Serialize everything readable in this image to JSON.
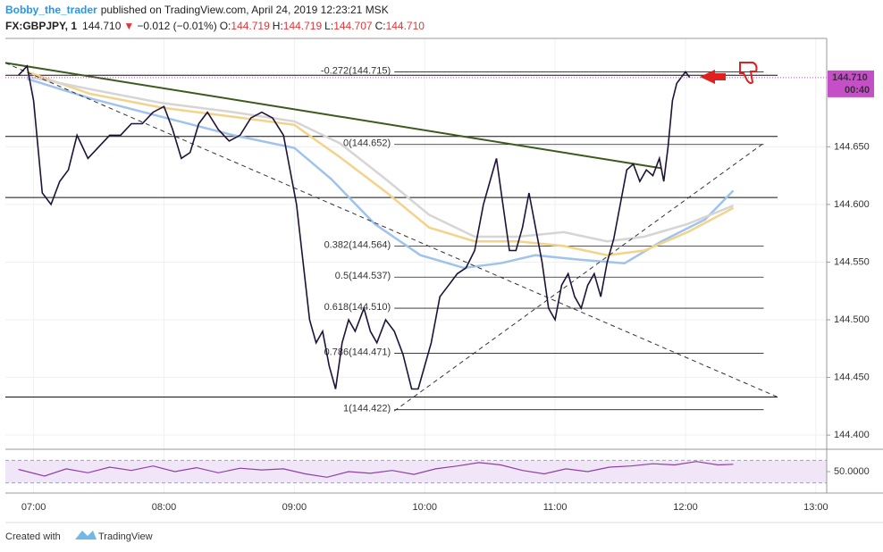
{
  "header": {
    "author": "Bobby_the_trader",
    "published": "published on TradingView.com, April 24, 2019 12:23:21 MSK"
  },
  "quote": {
    "symbol": "FX:GBPJPY, 1",
    "last": "144.710",
    "direction": "▼",
    "change": "−0.012 (−0.01%)",
    "open_label": "O:",
    "open": "144.719",
    "high_label": "H:",
    "high": "144.719",
    "low_label": "L:",
    "low": "144.707",
    "close_label": "C:",
    "close": "144.710"
  },
  "footer": {
    "created": "Created with",
    "brand": "TradingView"
  },
  "chart_data": {
    "type": "line",
    "xlim": [
      407,
      785
    ],
    "ylim": [
      144.39,
      144.744
    ],
    "xticks": [
      {
        "value": 420,
        "label": "07:00"
      },
      {
        "value": 480,
        "label": "08:00"
      },
      {
        "value": 540,
        "label": "09:00"
      },
      {
        "value": 600,
        "label": "10:00"
      },
      {
        "value": 660,
        "label": "11:00"
      },
      {
        "value": 720,
        "label": "12:00"
      },
      {
        "value": 780,
        "label": "13:00"
      }
    ],
    "yticks": [
      {
        "value": 144.4,
        "label": "144.400"
      },
      {
        "value": 144.45,
        "label": "144.450"
      },
      {
        "value": 144.5,
        "label": "144.500"
      },
      {
        "value": 144.55,
        "label": "144.550"
      },
      {
        "value": 144.6,
        "label": "144.600"
      },
      {
        "value": 144.65,
        "label": "144.650"
      }
    ],
    "grid": true,
    "x": [
      413,
      417,
      420,
      424,
      428,
      432,
      436,
      440,
      445,
      450,
      455,
      460,
      465,
      470,
      475,
      480,
      484,
      488,
      492,
      496,
      500,
      505,
      510,
      515,
      520,
      525,
      530,
      535,
      538,
      541,
      544,
      547,
      550,
      553,
      556,
      559,
      562,
      565,
      568,
      572,
      575,
      578,
      582,
      586,
      590,
      594,
      597,
      600,
      603,
      607,
      611,
      615,
      619,
      623,
      627,
      630,
      633,
      636,
      639,
      642,
      645,
      648,
      651,
      654,
      657,
      660,
      663,
      666,
      669,
      672,
      675,
      678,
      681,
      684,
      687,
      690,
      693,
      696,
      699,
      702,
      705,
      708,
      710,
      712,
      714,
      716,
      718,
      720,
      722
    ],
    "series": [
      {
        "color": "#1f1236",
        "values": [
          144.712,
          144.72,
          144.69,
          144.61,
          144.6,
          144.62,
          144.63,
          144.66,
          144.64,
          144.65,
          144.66,
          144.66,
          144.67,
          144.67,
          144.68,
          144.685,
          144.665,
          144.64,
          144.645,
          144.67,
          144.68,
          144.665,
          144.655,
          144.66,
          144.675,
          144.68,
          144.675,
          144.66,
          144.63,
          144.6,
          144.55,
          144.5,
          144.48,
          144.49,
          144.46,
          144.44,
          144.48,
          144.5,
          144.49,
          144.51,
          144.49,
          144.48,
          144.5,
          144.49,
          144.47,
          144.44,
          144.44,
          144.46,
          144.48,
          144.52,
          144.53,
          144.54,
          144.545,
          144.56,
          144.6,
          144.62,
          144.64,
          144.6,
          144.56,
          144.56,
          144.58,
          144.61,
          144.58,
          144.55,
          144.51,
          144.5,
          144.53,
          144.54,
          144.52,
          144.51,
          144.53,
          144.54,
          144.52,
          144.55,
          144.57,
          144.6,
          144.63,
          144.635,
          144.62,
          144.63,
          144.625,
          144.64,
          144.62,
          144.65,
          144.69,
          144.705,
          144.71,
          144.715,
          144.71
        ]
      }
    ],
    "moving_averages": [
      {
        "color": "#9fc3ec",
        "x": [
          417,
          446,
          479,
          512,
          540,
          557,
          577,
          598,
          618,
          635,
          651,
          672,
          692,
          709,
          729,
          742
        ],
        "values": [
          144.709,
          144.692,
          144.676,
          144.66,
          144.649,
          144.622,
          144.583,
          144.556,
          144.545,
          144.549,
          144.556,
          144.552,
          144.549,
          144.568,
          144.587,
          144.612
        ]
      },
      {
        "color": "#f3d38a",
        "x": [
          417,
          446,
          479,
          512,
          540,
          561,
          582,
          602,
          623,
          643,
          664,
          684,
          701,
          721,
          742
        ],
        "values": [
          144.715,
          144.696,
          144.684,
          144.676,
          144.669,
          144.641,
          144.611,
          144.58,
          144.568,
          144.568,
          144.564,
          144.556,
          144.56,
          144.576,
          144.597
        ]
      },
      {
        "color": "#d6d4d4",
        "x": [
          417,
          446,
          479,
          512,
          540,
          561,
          582,
          602,
          623,
          643,
          664,
          684,
          701,
          721,
          742
        ],
        "values": [
          144.711,
          144.7,
          144.688,
          144.68,
          144.672,
          144.653,
          144.622,
          144.591,
          144.572,
          144.572,
          144.576,
          144.568,
          144.572,
          144.583,
          144.599
        ]
      }
    ],
    "horizontal_lines": [
      144.712,
      144.659,
      144.606,
      144.433
    ],
    "trendlines": [
      {
        "color": "#3c5a1e",
        "dashed": false,
        "x": [
          407,
          709
        ],
        "y": [
          144.7228,
          144.6314
        ]
      },
      {
        "color": "#333333",
        "dashed": true,
        "x": [
          407,
          762
        ],
        "y": [
          144.7228,
          144.4333
        ]
      },
      {
        "color": "#333333",
        "dashed": true,
        "x": [
          586,
          756
        ],
        "y": [
          144.4209,
          144.6531
        ]
      }
    ],
    "fib_x": [
      586,
      756
    ],
    "fib_levels": [
      {
        "label": "-0.272(144.715)",
        "value": 144.715
      },
      {
        "label": "0(144.652)",
        "value": 144.652
      },
      {
        "label": "0.382(144.564)",
        "value": 144.564
      },
      {
        "label": "0.5(144.537)",
        "value": 144.537
      },
      {
        "label": "0.618(144.510)",
        "value": 144.51
      },
      {
        "label": "0.786(144.471)",
        "value": 144.471
      },
      {
        "label": "1(144.422)",
        "value": 144.422
      }
    ],
    "price_tag": {
      "value": 144.71,
      "label": "144.710",
      "countdown": "00:40",
      "color": "#c44fc6"
    },
    "rsi": {
      "color": "#8e3fa8",
      "ylim": [
        15,
        85
      ],
      "bands": [
        30,
        70
      ],
      "yticks": [
        {
          "value": 50,
          "label": "50.0000"
        }
      ],
      "x": [
        413,
        425,
        435,
        445,
        455,
        465,
        475,
        485,
        495,
        505,
        515,
        525,
        535,
        545,
        555,
        565,
        575,
        585,
        595,
        605,
        615,
        625,
        635,
        645,
        655,
        665,
        675,
        685,
        695,
        705,
        715,
        725,
        735,
        742
      ],
      "values": [
        54,
        42,
        55,
        48,
        58,
        52,
        60,
        50,
        57,
        48,
        56,
        53,
        55,
        46,
        40,
        50,
        47,
        52,
        45,
        55,
        60,
        66,
        62,
        52,
        46,
        55,
        50,
        58,
        60,
        64,
        62,
        68,
        62,
        63
      ]
    }
  }
}
